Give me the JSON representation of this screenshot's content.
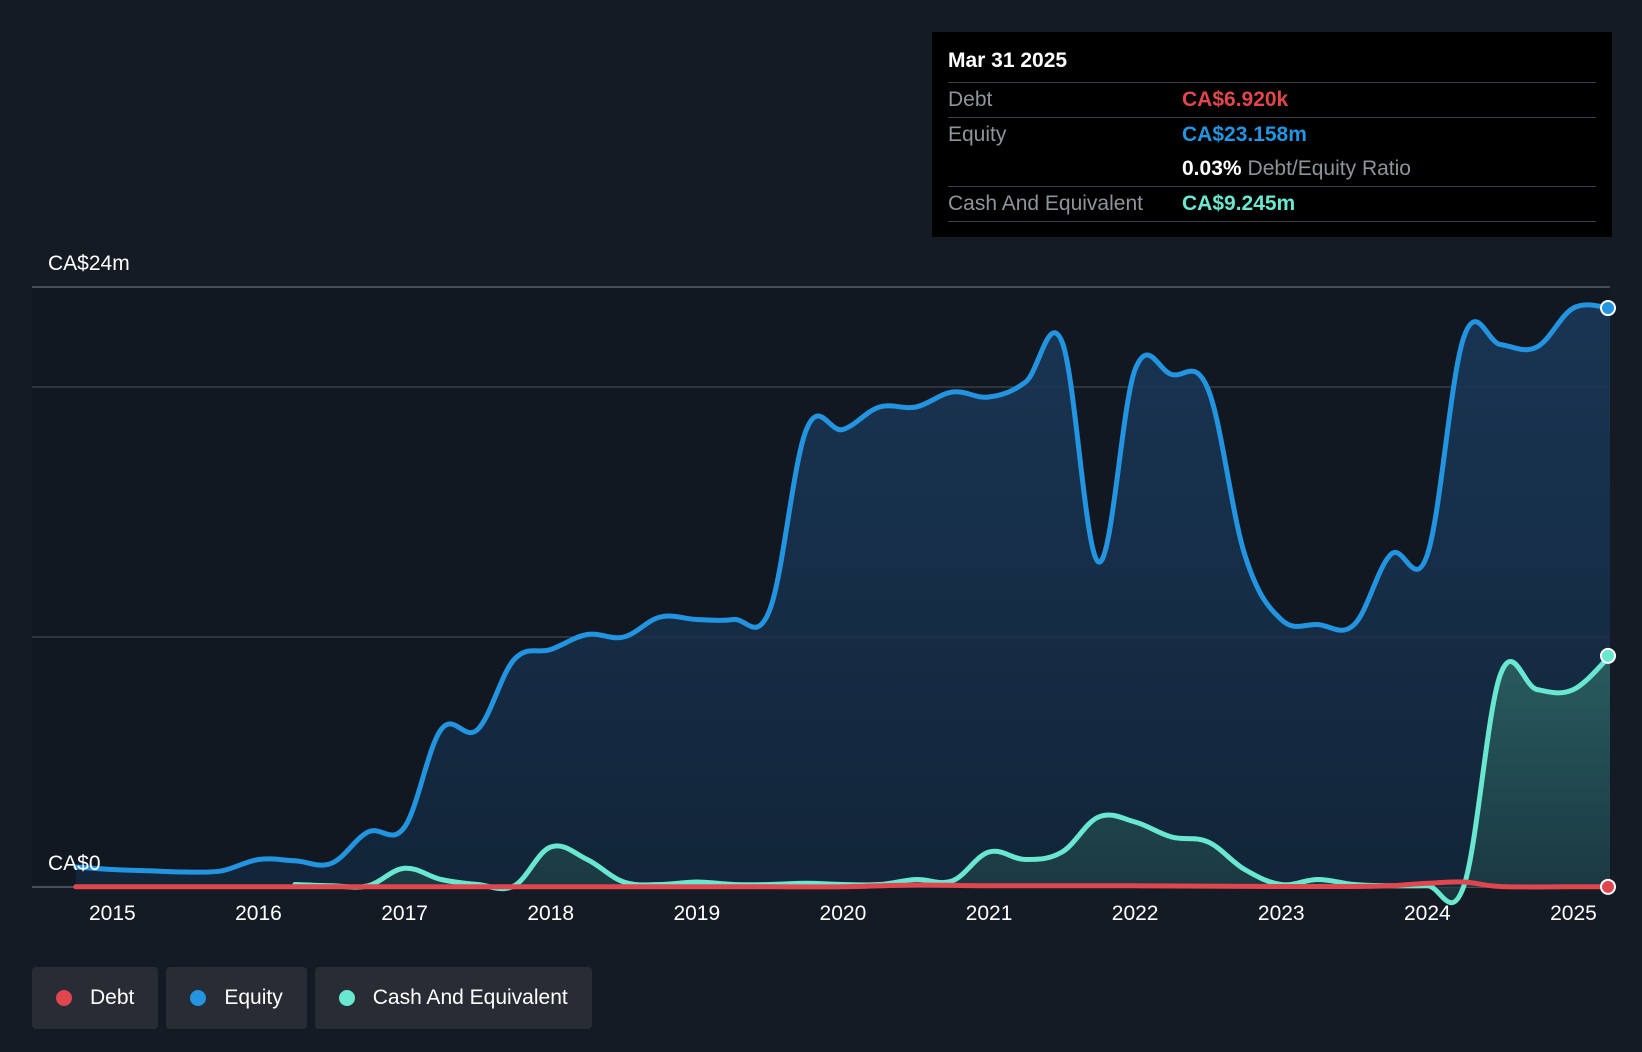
{
  "colors": {
    "debt": "#e0464e",
    "equity": "#2394df",
    "cash": "#6ae7d0",
    "grid": "#3a3f47",
    "axis_text": "#ffffff"
  },
  "tooltip": {
    "date": "Mar 31 2025",
    "debt_label": "Debt",
    "debt_value": "CA$6.920k",
    "equity_label": "Equity",
    "equity_value": "CA$23.158m",
    "ratio_pct": "0.03%",
    "ratio_label": "Debt/Equity Ratio",
    "cash_label": "Cash And Equivalent",
    "cash_value": "CA$9.245m"
  },
  "legend": {
    "debt": "Debt",
    "equity": "Equity",
    "cash": "Cash And Equivalent"
  },
  "chart_data": {
    "type": "area",
    "title": "",
    "ylabel_top": "CA$24m",
    "ylabel_bottom": "CA$0",
    "ylim": [
      0,
      24
    ],
    "xlim": [
      2014.45,
      2025.25
    ],
    "x_ticks": [
      "2015",
      "2016",
      "2017",
      "2018",
      "2019",
      "2020",
      "2021",
      "2022",
      "2023",
      "2024",
      "2025"
    ],
    "x_tick_values": [
      2015,
      2016,
      2017,
      2018,
      2019,
      2020,
      2021,
      2022,
      2023,
      2024,
      2025
    ],
    "gridlines": [
      0,
      10,
      20,
      24
    ],
    "series": [
      {
        "name": "Equity",
        "x": [
          2014.75,
          2015.0,
          2015.25,
          2015.5,
          2015.75,
          2016.0,
          2016.25,
          2016.5,
          2016.75,
          2017.0,
          2017.25,
          2017.5,
          2017.75,
          2018.0,
          2018.25,
          2018.5,
          2018.75,
          2019.0,
          2019.25,
          2019.5,
          2019.75,
          2020.0,
          2020.25,
          2020.5,
          2020.75,
          2021.0,
          2021.25,
          2021.5,
          2021.75,
          2022.0,
          2022.25,
          2022.5,
          2022.75,
          2023.0,
          2023.25,
          2023.5,
          2023.75,
          2024.0,
          2024.25,
          2024.5,
          2024.75,
          2025.0,
          2025.25
        ],
        "values": [
          0.8,
          0.7,
          0.65,
          0.6,
          0.65,
          1.1,
          1.05,
          0.95,
          2.2,
          2.4,
          6.3,
          6.3,
          9.1,
          9.5,
          10.1,
          10.0,
          10.8,
          10.7,
          10.7,
          11.1,
          18.3,
          18.3,
          19.2,
          19.2,
          19.8,
          19.6,
          20.2,
          21.8,
          13.0,
          20.7,
          20.5,
          19.9,
          13.3,
          10.7,
          10.5,
          10.5,
          13.3,
          13.3,
          22.0,
          21.7,
          21.6,
          23.158,
          23.158
        ]
      },
      {
        "name": "Cash And Equivalent",
        "x": [
          2016.25,
          2016.5,
          2016.75,
          2017.0,
          2017.25,
          2017.5,
          2017.75,
          2018.0,
          2018.25,
          2018.5,
          2018.75,
          2019.0,
          2019.25,
          2019.5,
          2019.75,
          2020.0,
          2020.25,
          2020.5,
          2020.75,
          2021.0,
          2021.25,
          2021.5,
          2021.75,
          2022.0,
          2022.25,
          2022.5,
          2022.75,
          2023.0,
          2023.25,
          2023.5,
          2023.75,
          2024.0,
          2024.25,
          2024.5,
          2024.75,
          2025.0,
          2025.25
        ],
        "values": [
          0.1,
          0.05,
          0.05,
          0.75,
          0.3,
          0.1,
          0.05,
          1.6,
          1.1,
          0.2,
          0.1,
          0.2,
          0.1,
          0.1,
          0.15,
          0.1,
          0.1,
          0.3,
          0.25,
          1.4,
          1.1,
          1.4,
          2.8,
          2.6,
          2.0,
          1.8,
          0.7,
          0.1,
          0.3,
          0.1,
          0.05,
          0.05,
          0.05,
          8.5,
          7.9,
          7.9,
          9.245
        ]
      },
      {
        "name": "Debt",
        "x": [
          2014.75,
          2015.5,
          2016.5,
          2017.5,
          2018.5,
          2019.5,
          2020.0,
          2020.5,
          2021.0,
          2022.0,
          2023.0,
          2023.5,
          2023.75,
          2024.0,
          2024.25,
          2024.5,
          2025.0,
          2025.25
        ],
        "values": [
          0.01,
          0.01,
          0.01,
          0.01,
          0.01,
          0.01,
          0.01,
          0.08,
          0.05,
          0.05,
          0.02,
          0.02,
          0.05,
          0.15,
          0.2,
          0.02,
          0.01,
          0.007
        ]
      }
    ]
  }
}
